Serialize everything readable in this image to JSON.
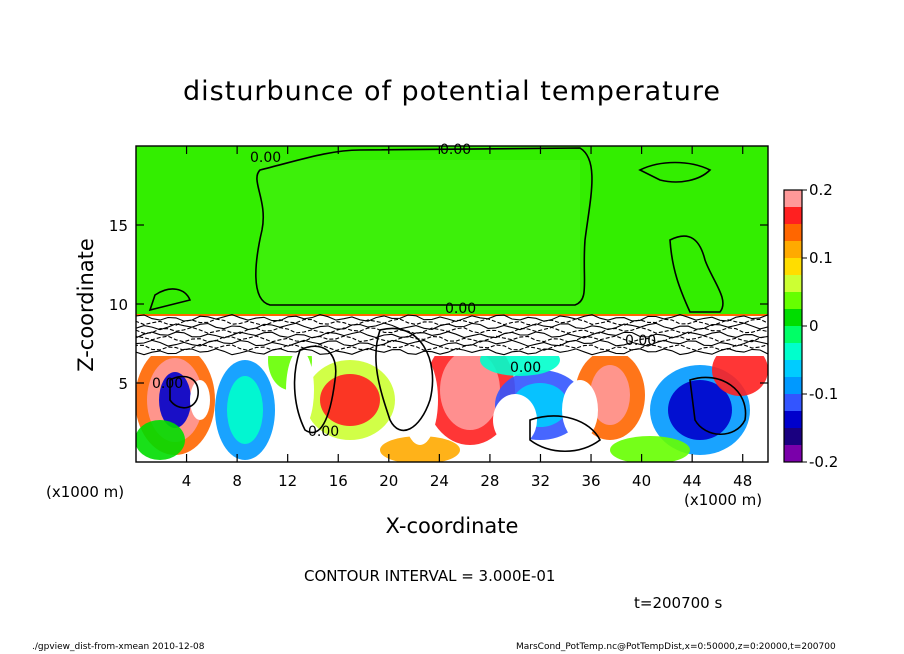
{
  "chart_data": {
    "type": "heatmap",
    "title": "disturbunce of potential temperature",
    "xlabel": "X-coordinate",
    "ylabel": "Z-coordinate",
    "x_unit_label": "(x1000 m)",
    "z_unit_label": "(x1000 m)",
    "xlim": [
      0,
      50
    ],
    "ylim": [
      0,
      20
    ],
    "x_ticks": [
      4,
      8,
      12,
      16,
      20,
      24,
      28,
      32,
      36,
      40,
      44,
      48
    ],
    "y_ticks": [
      5,
      10,
      15
    ],
    "colorbar": {
      "range": [
        -0.2,
        0.2
      ],
      "tick_labels": [
        "0.2",
        "0.1",
        "0",
        "-0.1",
        "-0.2"
      ],
      "tick_values": [
        0.2,
        0.1,
        0,
        -0.1,
        -0.2
      ],
      "colors": [
        "#ff9999",
        "#ff2020",
        "#ff6600",
        "#ffaa00",
        "#ffdd00",
        "#ccff33",
        "#66ff00",
        "#00dd00",
        "#00ff66",
        "#00ffcc",
        "#00ccff",
        "#0099ff",
        "#3355ff",
        "#0000cc",
        "#1a0080",
        "#7a00aa"
      ]
    },
    "contour_labels": [
      "0.00",
      "0.00",
      "0.00",
      "0.00",
      "0.00",
      "0.00",
      "0.00"
    ],
    "contour_interval_text": "CONTOUR INTERVAL = 3.000E-01",
    "time_text": "t=200700 s",
    "grid": false
  },
  "footer": {
    "left": "./gpview_dist-from-xmean 2010-12-08",
    "right": "MarsCond_PotTemp.nc@PotTempDist,x=0:50000,z=0:20000,t=200700"
  },
  "colors": {
    "upper_field": "#33ee00",
    "contour_line": "#000000"
  }
}
